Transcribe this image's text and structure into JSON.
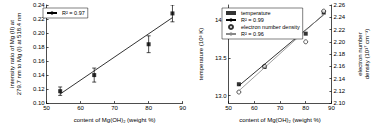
{
  "chart_data": [
    {
      "type": "scatter",
      "x_label": "content of Mg(OH)₂ (weight %)",
      "y_label": "intensity ratio of Mg (II) at 279.7 nm to Mg (I) at 518.4 nm",
      "xlim": [
        50,
        90
      ],
      "xticks": [
        50,
        60,
        70,
        80,
        90
      ],
      "ylim": [
        0.1,
        0.24
      ],
      "yticks": [
        {
          "value": 0.1,
          "label": "0.10"
        },
        {
          "value": 0.12,
          "label": "0.12"
        },
        {
          "value": 0.14,
          "label": "0.14"
        },
        {
          "value": 0.16,
          "label": "0.16"
        },
        {
          "value": 0.18,
          "label": "0.18"
        },
        {
          "value": 0.2,
          "label": "0.20"
        },
        {
          "value": 0.22,
          "label": "0.22"
        },
        {
          "value": 0.24,
          "label": "0.24"
        }
      ],
      "legend": "upper left",
      "series": [
        {
          "type": "scatter",
          "marker": "square",
          "color": "#000000",
          "x": [
            54,
            64,
            80,
            87
          ],
          "values": [
            0.117,
            0.14,
            0.184,
            0.228
          ],
          "errors": [
            0.006,
            0.01,
            0.012,
            0.012
          ]
        },
        {
          "name": "R² = 0.97",
          "type": "line",
          "line_style": "solid",
          "color": "#000000",
          "x": [
            54,
            87
          ],
          "values": [
            0.113,
            0.222
          ]
        }
      ]
    },
    {
      "type": "scatter",
      "x_label": "content of Mg(OH)₂ (weight %)",
      "y_label": "temperature (10³ K)",
      "y2_label": "electron number density (10¹⁷ cm⁻³)",
      "xlim": [
        50,
        90
      ],
      "xticks": [
        50,
        60,
        70,
        80,
        90
      ],
      "ylim": [
        12.9,
        14.2
      ],
      "yticks": [
        {
          "value": 13,
          "label": "13.0"
        },
        {
          "value": 13.5,
          "label": "13.5"
        },
        {
          "value": 14,
          "label": "14.0"
        }
      ],
      "y2lim": [
        2.1,
        2.26
      ],
      "y2ticks": [
        {
          "value": 2.1,
          "label": "2.10"
        },
        {
          "value": 2.12,
          "label": "2.12"
        },
        {
          "value": 2.14,
          "label": "2.14"
        },
        {
          "value": 2.16,
          "label": "2.16"
        },
        {
          "value": 2.18,
          "label": "2.18"
        },
        {
          "value": 2.2,
          "label": "2.20"
        },
        {
          "value": 2.22,
          "label": "2.22"
        },
        {
          "value": 2.24,
          "label": "2.24"
        },
        {
          "value": 2.26,
          "label": "2.26"
        }
      ],
      "legend": "upper left",
      "series": [
        {
          "name": "temperature",
          "type": "scatter",
          "marker": "square",
          "color": "#000000",
          "x": [
            54,
            64,
            80,
            87
          ],
          "values": [
            13.15,
            13.38,
            13.82,
            14.1
          ]
        },
        {
          "name": "R² = 0.99",
          "type": "line",
          "line_style": "solid",
          "color": "#000000",
          "x": [
            54,
            87
          ],
          "values": [
            13.13,
            14.07
          ]
        },
        {
          "name": "electron number density",
          "type": "scatter",
          "marker": "hollow circle",
          "color": "#000000",
          "axis": "y2",
          "x": [
            54,
            64,
            80,
            87
          ],
          "values": [
            2.118,
            2.16,
            2.2,
            2.25
          ]
        },
        {
          "name": "R² = 0.96",
          "type": "line",
          "line_style": "solid",
          "color": "#888888",
          "axis": "y2",
          "x": [
            54,
            87
          ],
          "values": [
            2.12,
            2.245
          ]
        }
      ]
    }
  ]
}
